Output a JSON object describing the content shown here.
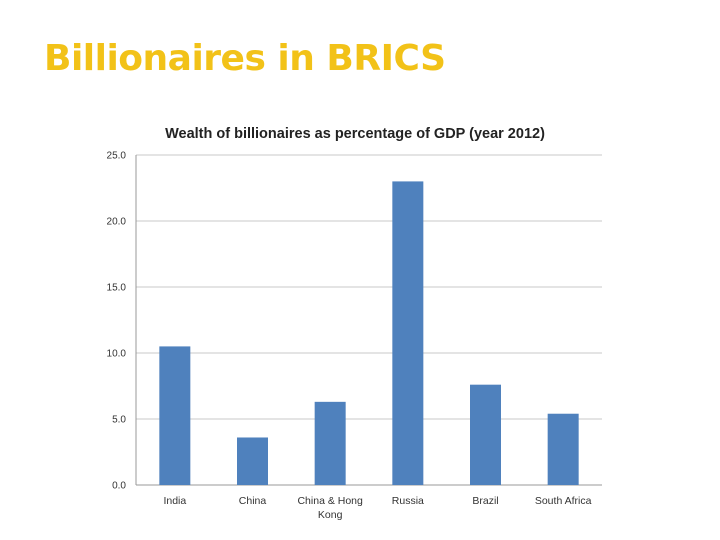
{
  "slide": {
    "title": "Billionaires in BRICS",
    "title_color": "#f2c218"
  },
  "chart_data": {
    "type": "bar",
    "title": "Wealth of billionaires as percentage of GDP (year 2012)",
    "categories": [
      "India",
      "China",
      "China & Hong Kong",
      "Russia",
      "Brazil",
      "South Africa"
    ],
    "category_lines": [
      [
        "India"
      ],
      [
        "China"
      ],
      [
        "China & Hong",
        "Kong"
      ],
      [
        "Russia"
      ],
      [
        "Brazil"
      ],
      [
        "South Africa"
      ]
    ],
    "values": [
      10.5,
      3.6,
      6.3,
      23.0,
      7.6,
      5.4
    ],
    "ylim": [
      0,
      25
    ],
    "yticks": [
      "0.0",
      "5.0",
      "10.0",
      "15.0",
      "20.0",
      "25.0"
    ],
    "grid": true,
    "legend": "none",
    "bar_color": "#4f81bd"
  }
}
